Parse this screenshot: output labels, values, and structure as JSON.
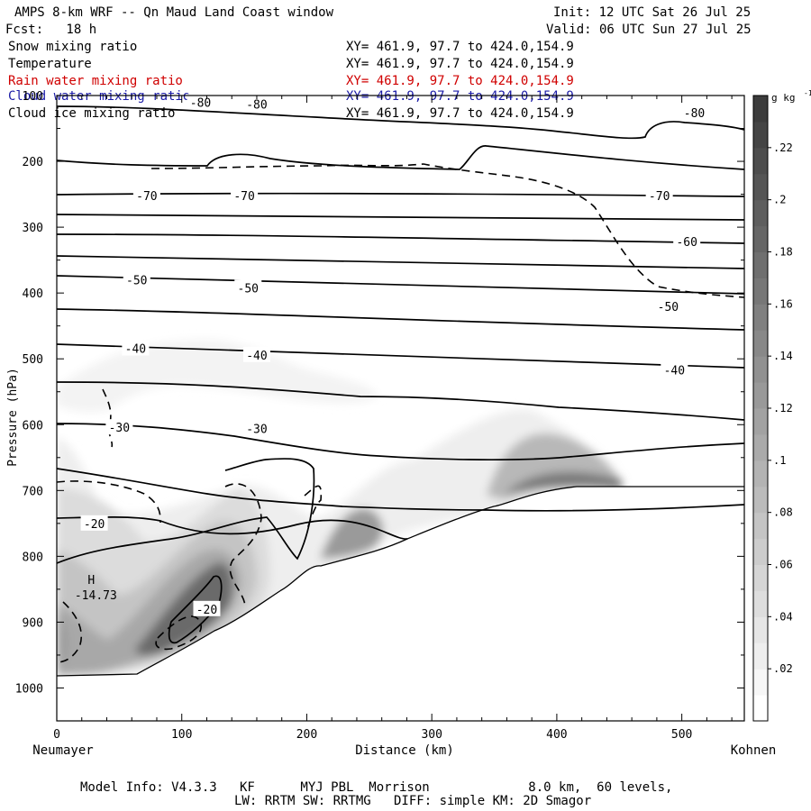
{
  "header": {
    "title": "AMPS 8-km WRF -- Qn Maud Land Coast window",
    "init": "Init: 12 UTC Sat 26 Jul 25",
    "fcst": "Fcst:   18 h",
    "valid": "Valid: 06 UTC Sun 27 Jul 25"
  },
  "fields": [
    {
      "name": "Snow mixing ratio",
      "xy": "XY= 461.9, 97.7 to 424.0,154.9",
      "color": "#000000"
    },
    {
      "name": "Temperature",
      "xy": "XY= 461.9, 97.7 to 424.0,154.9",
      "color": "#000000"
    },
    {
      "name": "Rain water mixing ratio",
      "xy": "XY= 461.9, 97.7 to 424.0,154.9",
      "color": "#d00000"
    },
    {
      "name": "Cloud water mixing ratio",
      "xy": "XY= 461.9, 97.7 to 424.0,154.9",
      "color": "#1a1aa6"
    },
    {
      "name": "Cloud ice mixing ratio",
      "xy": "XY= 461.9, 97.7 to 424.0,154.9",
      "color": "#000000"
    }
  ],
  "footer": {
    "line1": "Model Info: V4.3.3   KF      MYJ PBL  Morrison             8.0 km,  60 levels,",
    "line2": "LW: RRTM SW: RRTMG   DIFF: simple KM: 2D Smagor"
  },
  "chart_data": {
    "type": "contour",
    "xlabel": "Distance (km)",
    "ylabel": "Pressure (hPa)",
    "xlim": [
      0,
      550
    ],
    "ylim": [
      1050,
      100
    ],
    "x_ticks": [
      0,
      100,
      200,
      300,
      400,
      500
    ],
    "y_ticks": [
      100,
      200,
      300,
      400,
      500,
      600,
      700,
      800,
      900,
      1000
    ],
    "left_end_label": "Neumayer",
    "right_end_label": "Kohnen",
    "colorbar": {
      "unit": "g kg",
      "unit_sup": "-1",
      "ticks": [
        ".22",
        ".2",
        ".18",
        ".16",
        ".14",
        ".12",
        ".1",
        ".08",
        ".06",
        ".04",
        ".02"
      ],
      "levels": [
        0.01,
        0.02,
        0.03,
        0.04,
        0.05,
        0.06,
        0.07,
        0.08,
        0.09,
        0.1,
        0.11,
        0.12,
        0.13,
        0.14,
        0.15,
        0.16,
        0.17,
        0.18,
        0.19,
        0.2,
        0.21,
        0.22,
        0.23,
        0.24
      ]
    },
    "temperature_labels": [
      {
        "text": "-80",
        "x": 115,
        "p": 110
      },
      {
        "text": "-80",
        "x": 160,
        "p": 113
      },
      {
        "text": "-80",
        "x": 510,
        "p": 126
      },
      {
        "text": "-70",
        "x": 72,
        "p": 252
      },
      {
        "text": "-70",
        "x": 150,
        "p": 252
      },
      {
        "text": "-70",
        "x": 482,
        "p": 252
      },
      {
        "text": "-60",
        "x": 504,
        "p": 322
      },
      {
        "text": "-50",
        "x": 64,
        "p": 380
      },
      {
        "text": "-50",
        "x": 153,
        "p": 392
      },
      {
        "text": "-50",
        "x": 489,
        "p": 420
      },
      {
        "text": "-40",
        "x": 63,
        "p": 484
      },
      {
        "text": "-40",
        "x": 160,
        "p": 494
      },
      {
        "text": "-40",
        "x": 494,
        "p": 517
      },
      {
        "text": "-30",
        "x": 50,
        "p": 604
      },
      {
        "text": "-30",
        "x": 160,
        "p": 606
      },
      {
        "text": "-20",
        "x": 30,
        "p": 750
      },
      {
        "text": "-20",
        "x": 120,
        "p": 880
      }
    ],
    "extremum": {
      "label": "H",
      "value": "-14.73",
      "x": 37,
      "p": 835
    }
  }
}
